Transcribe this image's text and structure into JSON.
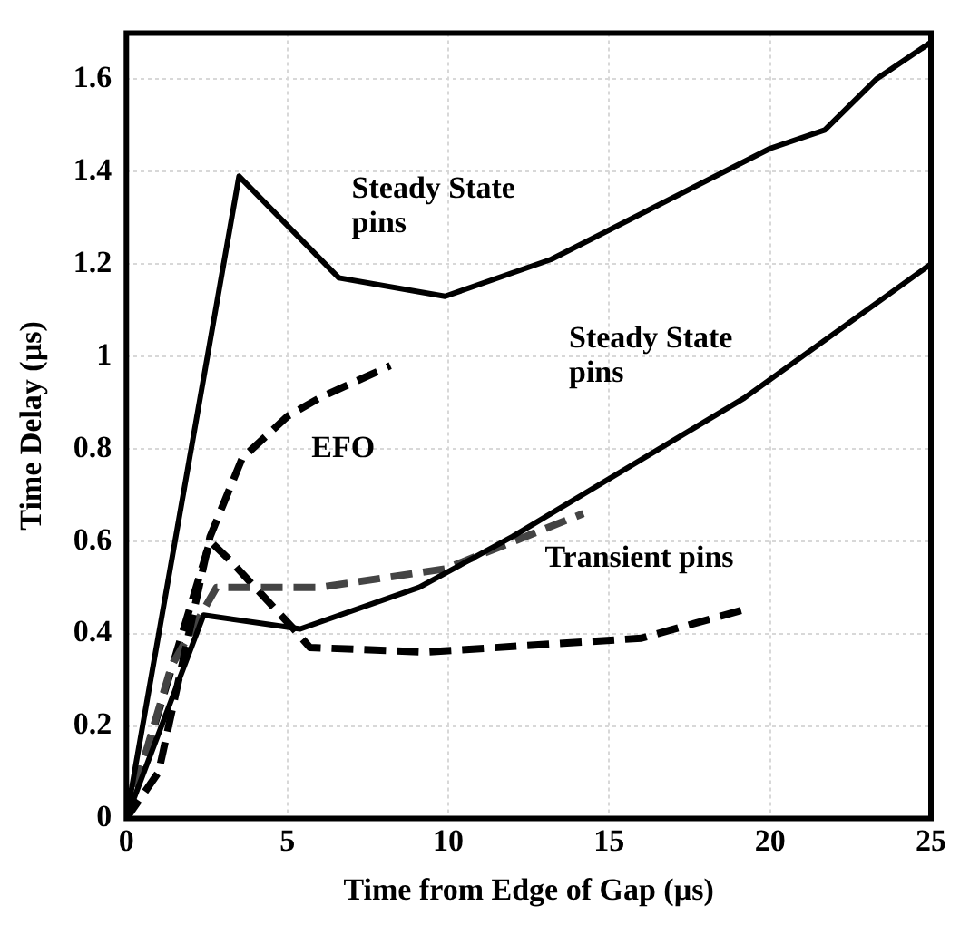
{
  "chart_data": {
    "type": "line",
    "xlabel": "Time from Edge of Gap (µs)",
    "ylabel": "Time Delay (µs)",
    "xlim": [
      0,
      25
    ],
    "xticks": [
      0,
      5,
      10,
      15,
      20,
      25
    ],
    "ylim": [
      0,
      1.7
    ],
    "yticks": [
      0,
      0.2,
      0.4,
      0.6,
      0.8,
      1,
      1.2,
      1.4,
      1.6
    ],
    "grid": true,
    "legend": false,
    "marker": "none",
    "series": [
      {
        "color": "#000000",
        "line_style": "solid",
        "x": [
          0,
          3.5,
          6.6,
          9.9,
          13.2,
          20,
          21.7,
          23.3,
          25
        ],
        "values": [
          0,
          1.39,
          1.17,
          1.13,
          1.21,
          1.45,
          1.49,
          1.6,
          1.68
        ]
      },
      {
        "color": "#000000",
        "line_style": "solid",
        "x": [
          0,
          2.4,
          5.4,
          9.1,
          12,
          19.2,
          25
        ],
        "values": [
          0,
          0.44,
          0.41,
          0.5,
          0.61,
          0.91,
          1.2
        ]
      },
      {
        "color": "#000000",
        "line_style": "dashed",
        "x": [
          0,
          1,
          2.6,
          3.6,
          5,
          6,
          8.2
        ],
        "values": [
          0,
          0.1,
          0.61,
          0.78,
          0.87,
          0.91,
          0.98
        ]
      },
      {
        "color": "#444444",
        "line_style": "dashed",
        "x": [
          0,
          1.4,
          2.8,
          6,
          9.9,
          14.2
        ],
        "values": [
          0,
          0.33,
          0.5,
          0.5,
          0.54,
          0.66
        ]
      },
      {
        "color": "#000000",
        "line_style": "dashed",
        "x": [
          0,
          2.6,
          3.2,
          5.2,
          5.7,
          9.3,
          16,
          19.1
        ],
        "values": [
          0,
          0.6,
          0.56,
          0.41,
          0.37,
          0.36,
          0.39,
          0.45
        ]
      }
    ],
    "annotations": [
      "Steady State pins",
      "Steady State pins",
      "EFO",
      "Transient pins"
    ]
  }
}
